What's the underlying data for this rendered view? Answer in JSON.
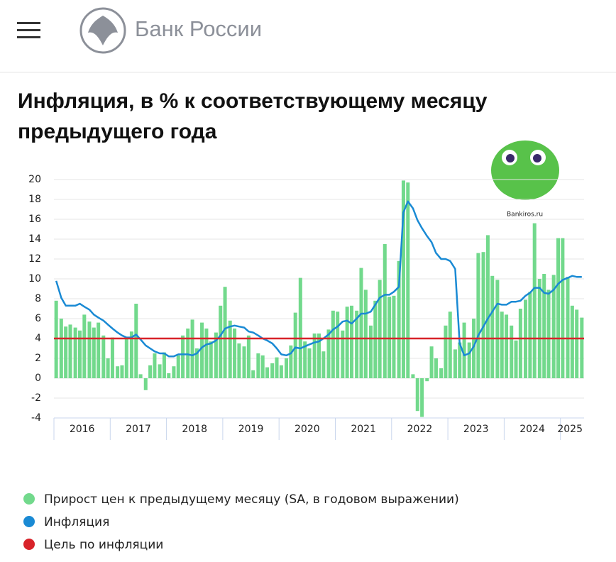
{
  "header": {
    "brand": "Банк России"
  },
  "watermark": "Bankiros.ru",
  "chart_data": {
    "type": "combo",
    "title": "Инфляция, в % к соответствующему месяцу предыдущего года",
    "title_lines": [
      "Инфляция, в % к соответствующему месяцу",
      "предыдущего года"
    ],
    "x": [
      2016.04,
      2016.13,
      2016.21,
      2016.29,
      2016.38,
      2016.46,
      2016.54,
      2016.63,
      2016.71,
      2016.79,
      2016.88,
      2016.96,
      2017.04,
      2017.13,
      2017.21,
      2017.29,
      2017.38,
      2017.46,
      2017.54,
      2017.63,
      2017.71,
      2017.79,
      2017.88,
      2017.96,
      2018.04,
      2018.13,
      2018.21,
      2018.29,
      2018.38,
      2018.46,
      2018.54,
      2018.63,
      2018.71,
      2018.79,
      2018.88,
      2018.96,
      2019.04,
      2019.13,
      2019.21,
      2019.29,
      2019.38,
      2019.46,
      2019.54,
      2019.63,
      2019.71,
      2019.79,
      2019.88,
      2019.96,
      2020.04,
      2020.13,
      2020.21,
      2020.29,
      2020.38,
      2020.46,
      2020.54,
      2020.63,
      2020.71,
      2020.79,
      2020.88,
      2020.96,
      2021.04,
      2021.13,
      2021.21,
      2021.29,
      2021.38,
      2021.46,
      2021.54,
      2021.63,
      2021.71,
      2021.79,
      2021.88,
      2021.96,
      2022.04,
      2022.13,
      2022.21,
      2022.29,
      2022.38,
      2022.46,
      2022.54,
      2022.63,
      2022.71,
      2022.79,
      2022.88,
      2022.96,
      2023.04,
      2023.13,
      2023.21,
      2023.29,
      2023.38,
      2023.46,
      2023.54,
      2023.63,
      2023.71,
      2023.79,
      2023.88,
      2023.96,
      2024.04,
      2024.13,
      2024.21,
      2024.29,
      2024.38,
      2024.46,
      2024.54,
      2024.63,
      2024.71,
      2024.79,
      2024.88,
      2024.96,
      2025.04,
      2025.13,
      2025.21,
      2025.29,
      2025.38
    ],
    "xlim": [
      2016,
      2025.42
    ],
    "xticks": [
      {
        "value": 2016.5,
        "label": "2016"
      },
      {
        "value": 2017.5,
        "label": "2017"
      },
      {
        "value": 2018.5,
        "label": "2018"
      },
      {
        "value": 2019.5,
        "label": "2019"
      },
      {
        "value": 2020.5,
        "label": "2020"
      },
      {
        "value": 2021.5,
        "label": "2021"
      },
      {
        "value": 2022.5,
        "label": "2022"
      },
      {
        "value": 2023.5,
        "label": "2023"
      },
      {
        "value": 2024.5,
        "label": "2024"
      },
      {
        "value": 2025.17,
        "label": "2025"
      }
    ],
    "xticks_minor": [
      2016,
      2017,
      2018,
      2019,
      2020,
      2021,
      2022,
      2023,
      2024,
      2025
    ],
    "ylim": [
      -4,
      20
    ],
    "yticks": [
      -4,
      -2,
      0,
      2,
      4,
      6,
      8,
      10,
      12,
      14,
      16,
      18,
      20
    ],
    "grid": true,
    "series": [
      {
        "name": "Прирост цен к предыдущему месяцу (SA, в годовом выражении)",
        "type": "bar",
        "color": "#72d98c",
        "values": [
          7.8,
          6.0,
          5.2,
          5.4,
          5.1,
          4.8,
          6.4,
          5.7,
          5.1,
          5.6,
          4.3,
          2.0,
          4.1,
          1.2,
          1.3,
          4.1,
          4.7,
          7.5,
          0.4,
          -1.2,
          1.3,
          2.5,
          1.4,
          2.6,
          0.5,
          1.2,
          2.3,
          4.3,
          5.0,
          5.9,
          3.0,
          5.6,
          5.0,
          3.7,
          4.6,
          7.3,
          9.2,
          5.8,
          5.0,
          3.5,
          3.2,
          4.3,
          0.8,
          2.5,
          2.3,
          1.1,
          1.5,
          2.1,
          1.3,
          2.0,
          3.3,
          6.6,
          10.1,
          3.7,
          3.0,
          4.5,
          4.5,
          2.7,
          4.9,
          6.8,
          6.7,
          4.8,
          7.2,
          7.3,
          6.8,
          11.1,
          8.9,
          5.3,
          7.8,
          9.9,
          13.5,
          8.2,
          8.3,
          11.8,
          19.9,
          19.7,
          0.4,
          -3.3,
          -3.9,
          -0.3,
          3.2,
          2.0,
          1.0,
          5.3,
          6.7,
          2.9,
          3.6,
          5.6,
          3.6,
          6.0,
          12.6,
          12.7,
          14.4,
          10.3,
          9.9,
          6.7,
          6.4,
          5.3,
          3.8,
          7.0,
          7.9,
          8.7,
          15.6,
          10.0,
          10.5,
          8.9,
          10.4,
          14.1,
          14.1,
          10.2,
          7.3,
          6.9,
          6.1
        ]
      },
      {
        "name": "Инфляция",
        "type": "line",
        "color": "#1a8ad4",
        "values": [
          9.8,
          8.1,
          7.3,
          7.3,
          7.3,
          7.5,
          7.2,
          6.9,
          6.4,
          6.1,
          5.8,
          5.4,
          5.0,
          4.6,
          4.3,
          4.1,
          4.1,
          4.4,
          3.9,
          3.3,
          3.0,
          2.7,
          2.5,
          2.5,
          2.2,
          2.2,
          2.4,
          2.4,
          2.4,
          2.3,
          2.5,
          3.1,
          3.4,
          3.5,
          3.8,
          4.3,
          5.0,
          5.2,
          5.3,
          5.2,
          5.1,
          4.7,
          4.6,
          4.3,
          4.0,
          3.8,
          3.5,
          3.0,
          2.4,
          2.3,
          2.5,
          3.1,
          3.0,
          3.2,
          3.4,
          3.6,
          3.7,
          4.0,
          4.4,
          4.9,
          5.2,
          5.7,
          5.8,
          5.5,
          6.0,
          6.5,
          6.5,
          6.7,
          7.4,
          8.1,
          8.4,
          8.4,
          8.7,
          9.2,
          16.7,
          17.8,
          17.1,
          15.9,
          15.1,
          14.3,
          13.7,
          12.6,
          12.0,
          12.0,
          11.8,
          11.0,
          3.5,
          2.3,
          2.5,
          3.2,
          4.3,
          5.2,
          6.0,
          6.7,
          7.5,
          7.4,
          7.4,
          7.7,
          7.7,
          7.8,
          8.3,
          8.6,
          9.1,
          9.1,
          8.6,
          8.5,
          8.9,
          9.5,
          9.9,
          10.1,
          10.3,
          10.2,
          10.2
        ]
      },
      {
        "name": "Цель по инфляции",
        "type": "hline",
        "color": "#d8232a",
        "value": 4
      }
    ]
  }
}
